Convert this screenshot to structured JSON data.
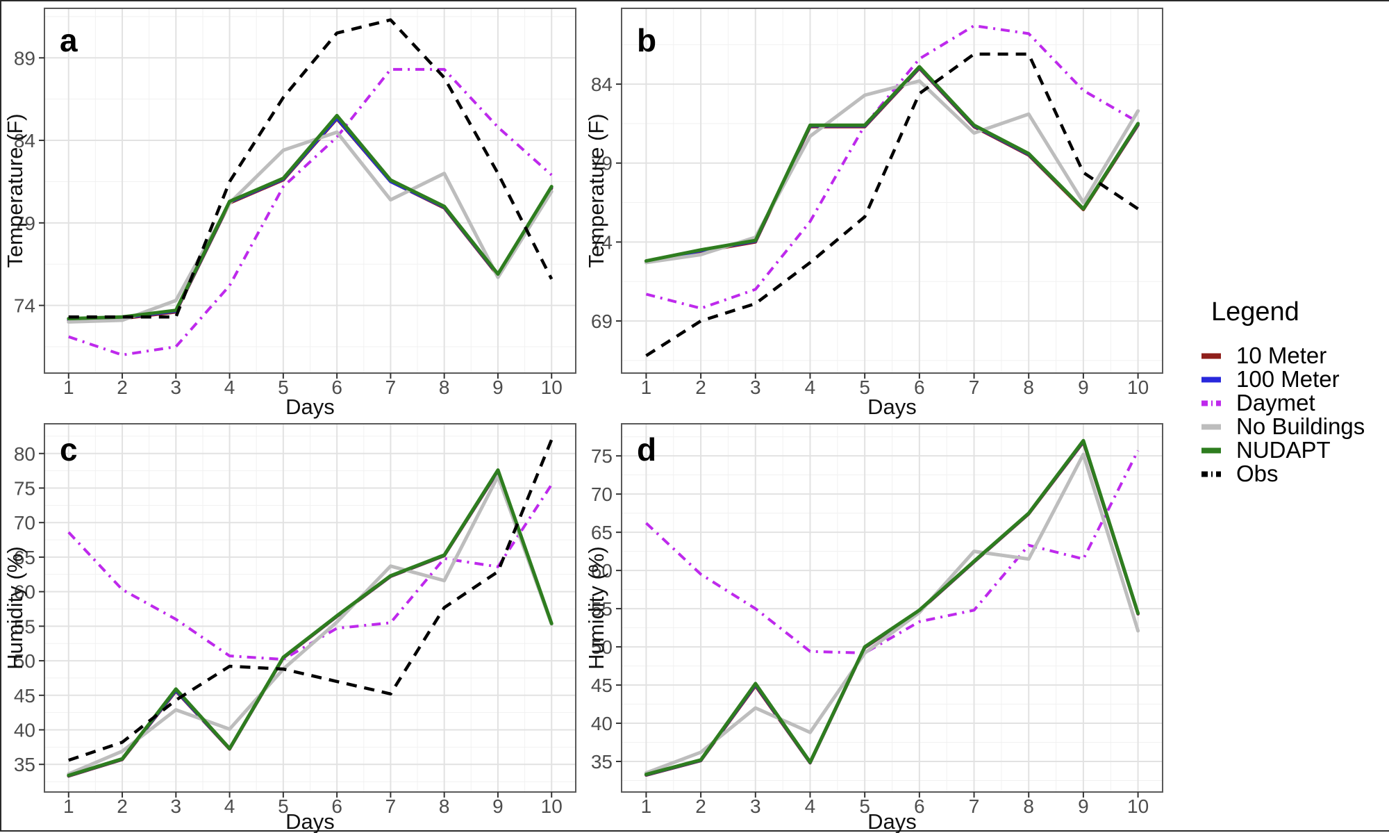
{
  "figure": {
    "description": "Four-panel line chart figure comparing model temperature and humidity over ten days"
  },
  "legend": {
    "title": "Legend",
    "items": [
      {
        "label": "10 Meter",
        "series": "ten_meter"
      },
      {
        "label": "100 Meter",
        "series": "hundred_meter"
      },
      {
        "label": "Daymet",
        "series": "daymet"
      },
      {
        "label": "No Buildings",
        "series": "no_buildings"
      },
      {
        "label": "NUDAPT",
        "series": "nudapt"
      },
      {
        "label": "Obs",
        "series": "obs"
      }
    ]
  },
  "series_styles": {
    "ten_meter": {
      "color": "#8F1F1B",
      "width": 4.5,
      "dash": null
    },
    "hundred_meter": {
      "color": "#2828DC",
      "width": 4.5,
      "dash": null
    },
    "daymet": {
      "color": "#BE29EC",
      "width": 4,
      "dash": "13 8 3 8"
    },
    "no_buildings": {
      "color": "#BDBDBD",
      "width": 5,
      "dash": null
    },
    "nudapt": {
      "color": "#2E7D1F",
      "width": 5,
      "dash": null
    },
    "obs": {
      "color": "#000000",
      "width": 4.5,
      "dash": "15 11"
    }
  },
  "draw_order": [
    "ten_meter",
    "hundred_meter",
    "daymet",
    "no_buildings",
    "nudapt",
    "obs"
  ],
  "chart_data": [
    {
      "panel": "a",
      "type": "line",
      "letter": "a",
      "xlabel": "Days",
      "ylabel": "Temperature (F)",
      "x": [
        1,
        2,
        3,
        4,
        5,
        6,
        7,
        8,
        9,
        10
      ],
      "xticks": [
        1,
        2,
        3,
        4,
        5,
        6,
        7,
        8,
        9,
        10
      ],
      "yticks": [
        74,
        79,
        84,
        89
      ],
      "xlim": [
        0.55,
        10.45
      ],
      "ylim": [
        69.9,
        92.0
      ],
      "grid": true,
      "series": [
        {
          "id": "ten_meter",
          "name": "10 Meter",
          "values": [
            73.1,
            73.2,
            73.6,
            80.2,
            81.6,
            85.3,
            81.5,
            79.9,
            75.8,
            81.1
          ]
        },
        {
          "id": "hundred_meter",
          "name": "100 Meter",
          "values": [
            73.15,
            73.25,
            73.65,
            80.25,
            81.65,
            85.35,
            81.5,
            79.95,
            75.85,
            81.15
          ]
        },
        {
          "id": "daymet",
          "name": "Daymet",
          "values": [
            72.1,
            71.0,
            71.5,
            75.2,
            81.2,
            84.2,
            88.3,
            88.3,
            84.8,
            81.9
          ]
        },
        {
          "id": "no_buildings",
          "name": "No Buildings",
          "values": [
            73.0,
            73.1,
            74.3,
            80.2,
            83.4,
            84.5,
            80.4,
            82.0,
            75.7,
            80.9
          ]
        },
        {
          "id": "nudapt",
          "name": "NUDAPT",
          "values": [
            73.2,
            73.3,
            73.7,
            80.3,
            81.7,
            85.5,
            81.6,
            80.0,
            75.9,
            81.2
          ]
        },
        {
          "id": "obs",
          "name": "Obs",
          "values": [
            73.3,
            73.3,
            73.3,
            81.5,
            86.6,
            90.5,
            91.3,
            87.8,
            82.0,
            75.6
          ]
        }
      ]
    },
    {
      "panel": "b",
      "type": "line",
      "letter": "b",
      "xlabel": "Days",
      "ylabel": "Temperature (F)",
      "x": [
        1,
        2,
        3,
        4,
        5,
        6,
        7,
        8,
        9,
        10
      ],
      "xticks": [
        1,
        2,
        3,
        4,
        5,
        6,
        7,
        8,
        9,
        10
      ],
      "yticks": [
        69,
        74,
        79,
        84
      ],
      "xlim": [
        0.55,
        10.45
      ],
      "ylim": [
        65.7,
        88.8
      ],
      "grid": true,
      "series": [
        {
          "id": "ten_meter",
          "name": "10 Meter",
          "values": [
            72.7,
            73.4,
            74.0,
            81.3,
            81.3,
            85.0,
            81.3,
            79.5,
            76.05,
            81.4
          ]
        },
        {
          "id": "hundred_meter",
          "name": "100 Meter",
          "values": [
            72.75,
            73.45,
            74.05,
            81.35,
            81.35,
            85.05,
            81.35,
            79.55,
            76.1,
            81.45
          ]
        },
        {
          "id": "daymet",
          "name": "Daymet",
          "values": [
            70.7,
            69.8,
            71.0,
            75.3,
            81.4,
            85.6,
            87.7,
            87.2,
            83.6,
            81.6
          ]
        },
        {
          "id": "no_buildings",
          "name": "No Buildings",
          "values": [
            72.7,
            73.2,
            74.3,
            80.7,
            83.3,
            84.2,
            80.9,
            82.1,
            76.5,
            82.3
          ]
        },
        {
          "id": "nudapt",
          "name": "NUDAPT",
          "values": [
            72.8,
            73.5,
            74.1,
            81.4,
            81.4,
            85.1,
            81.4,
            79.6,
            76.1,
            81.5
          ]
        },
        {
          "id": "obs",
          "name": "Obs",
          "values": [
            66.8,
            69.0,
            70.1,
            72.7,
            75.6,
            83.4,
            85.9,
            85.9,
            78.4,
            76.1
          ]
        }
      ]
    },
    {
      "panel": "c",
      "type": "line",
      "letter": "c",
      "xlabel": "Days",
      "ylabel": "Humidity (%)",
      "x": [
        1,
        2,
        3,
        4,
        5,
        6,
        7,
        8,
        9,
        10
      ],
      "xticks": [
        1,
        2,
        3,
        4,
        5,
        6,
        7,
        8,
        9,
        10
      ],
      "yticks": [
        35,
        40,
        45,
        50,
        55,
        60,
        65,
        70,
        75,
        80
      ],
      "xlim": [
        0.55,
        10.45
      ],
      "ylim": [
        31.0,
        84.3
      ],
      "grid": true,
      "series": [
        {
          "id": "ten_meter",
          "name": "10 Meter",
          "values": [
            33.3,
            35.7,
            45.6,
            37.2,
            50.4,
            56.4,
            62.2,
            65.2,
            77.4,
            55.3
          ]
        },
        {
          "id": "hundred_meter",
          "name": "100 Meter",
          "values": [
            33.35,
            35.75,
            45.7,
            37.25,
            50.45,
            56.45,
            62.25,
            65.25,
            77.5,
            55.35
          ]
        },
        {
          "id": "daymet",
          "name": "Daymet",
          "values": [
            68.6,
            60.3,
            56.0,
            50.7,
            50.2,
            54.7,
            55.5,
            64.8,
            63.6,
            75.5
          ]
        },
        {
          "id": "no_buildings",
          "name": "No Buildings",
          "values": [
            33.6,
            36.9,
            42.9,
            40.1,
            48.8,
            55.6,
            63.7,
            61.6,
            76.7,
            55.3
          ]
        },
        {
          "id": "nudapt",
          "name": "NUDAPT",
          "values": [
            33.4,
            35.8,
            45.9,
            37.3,
            50.5,
            56.5,
            62.3,
            65.3,
            77.6,
            55.4
          ]
        },
        {
          "id": "obs",
          "name": "Obs",
          "values": [
            35.6,
            38.2,
            44.3,
            49.2,
            48.8,
            47.0,
            45.2,
            57.7,
            62.9,
            82.0
          ]
        }
      ]
    },
    {
      "panel": "d",
      "type": "line",
      "letter": "d",
      "xlabel": "Days",
      "ylabel": "Humidity (%)",
      "x": [
        1,
        2,
        3,
        4,
        5,
        6,
        7,
        8,
        9,
        10
      ],
      "xticks": [
        1,
        2,
        3,
        4,
        5,
        6,
        7,
        8,
        9,
        10
      ],
      "yticks": [
        35,
        40,
        45,
        50,
        55,
        60,
        65,
        70,
        75
      ],
      "xlim": [
        0.55,
        10.45
      ],
      "ylim": [
        31.0,
        79.2
      ],
      "grid": true,
      "series": [
        {
          "id": "ten_meter",
          "name": "10 Meter",
          "values": [
            33.2,
            35.1,
            44.9,
            34.8,
            49.9,
            54.7,
            61.1,
            67.4,
            76.8,
            54.3
          ]
        },
        {
          "id": "hundred_meter",
          "name": "100 Meter",
          "values": [
            33.25,
            35.15,
            45.05,
            34.85,
            49.95,
            54.75,
            61.15,
            67.45,
            76.9,
            54.35
          ]
        },
        {
          "id": "daymet",
          "name": "Daymet",
          "values": [
            66.2,
            59.5,
            55.0,
            49.4,
            49.2,
            53.3,
            54.8,
            63.3,
            61.5,
            75.7
          ]
        },
        {
          "id": "no_buildings",
          "name": "No Buildings",
          "values": [
            33.5,
            36.2,
            42.0,
            38.8,
            49.2,
            54.5,
            62.5,
            61.5,
            75.2,
            52.1
          ]
        },
        {
          "id": "nudapt",
          "name": "NUDAPT",
          "values": [
            33.3,
            35.2,
            45.2,
            34.9,
            50.0,
            54.8,
            61.2,
            67.5,
            77.0,
            54.4
          ]
        }
      ]
    }
  ]
}
